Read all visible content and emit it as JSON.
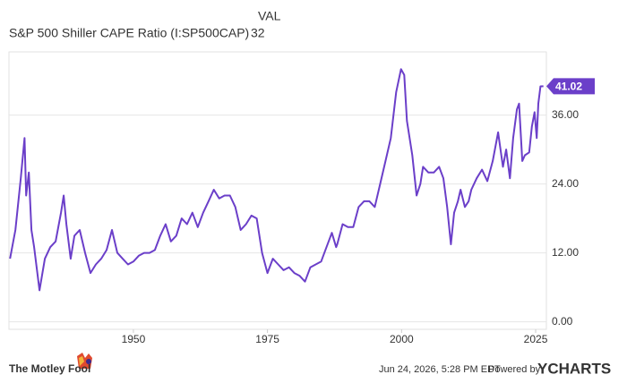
{
  "chart_data": {
    "type": "line",
    "title": "S&P 500 Shiller CAPE Ratio (I:SP500CAP)",
    "value_header": "VAL",
    "x": [
      1927.0,
      1928.0,
      1929.0,
      1929.7,
      1930.0,
      1930.5,
      1931.0,
      1931.5,
      1932.5,
      1933.5,
      1934.5,
      1935.5,
      1936.5,
      1937.0,
      1937.5,
      1938.3,
      1939,
      1940,
      1941,
      1942,
      1943,
      1944,
      1945,
      1946,
      1947,
      1948,
      1949,
      1950,
      1951,
      1952,
      1953,
      1954,
      1955,
      1956,
      1957,
      1958,
      1959,
      1960,
      1961,
      1962,
      1963,
      1964,
      1965,
      1966,
      1967,
      1968,
      1969,
      1970,
      1971,
      1972,
      1973,
      1974,
      1975,
      1976,
      1977,
      1978,
      1979,
      1980,
      1981,
      1982,
      1983,
      1984,
      1985,
      1986,
      1987,
      1987.8,
      1988,
      1989,
      1990,
      1991,
      1992,
      1993,
      1994,
      1995,
      1996,
      1997,
      1998,
      1999,
      1999.9,
      2000.5,
      2001,
      2002,
      2002.8,
      2003.5,
      2004,
      2005,
      2006,
      2007,
      2007.8,
      2008.5,
      2009.2,
      2009.8,
      2010.5,
      2011,
      2011.8,
      2012.5,
      2013,
      2014,
      2015,
      2016,
      2017,
      2018,
      2018.9,
      2019.5,
      2020.2,
      2020.8,
      2021.5,
      2021.9,
      2022.5,
      2023,
      2023.8,
      2024.3,
      2024.8,
      2025.2,
      2025.5,
      2025.9,
      2026.45
    ],
    "series": [
      {
        "name": "S&P 500 Shiller CAPE Ratio (I:SP500CAP)",
        "color": "#6b3fc9",
        "values": [
          11,
          16,
          25,
          32,
          22,
          26,
          16,
          13,
          5.5,
          11,
          13,
          14,
          19,
          22,
          17,
          11,
          15,
          16,
          12,
          8.5,
          10,
          11,
          12.5,
          16,
          12,
          11,
          10,
          10.5,
          11.5,
          12,
          12,
          12.5,
          15,
          17,
          14,
          15,
          18,
          17,
          19,
          16.5,
          19,
          21,
          23,
          21.5,
          22,
          22,
          20,
          16,
          17,
          18.5,
          18,
          12,
          8.5,
          11,
          10,
          9,
          9.5,
          8.5,
          8,
          7,
          9.5,
          10,
          10.5,
          13,
          15.5,
          13,
          13.5,
          17,
          16.5,
          16.5,
          20,
          21,
          21,
          20,
          24,
          28,
          32,
          40,
          44,
          43,
          35,
          29,
          22,
          24,
          27,
          26,
          26,
          27,
          25,
          20,
          13.5,
          19,
          21,
          23,
          20,
          21,
          23,
          25,
          26.5,
          24.5,
          28,
          33,
          27,
          30,
          25,
          32,
          37,
          38,
          28,
          29,
          29.5,
          34,
          36.5,
          32,
          38,
          41,
          41.02
        ]
      }
    ],
    "xlim": [
      1926.8,
      2027
    ],
    "ylim": [
      -1.3,
      47
    ],
    "xticks": [
      1950,
      1975,
      2000,
      2025
    ],
    "yticks": [
      {
        "value": 0,
        "label": "0.00"
      },
      {
        "value": 12,
        "label": "12.00"
      },
      {
        "value": 24,
        "label": "24.00"
      },
      {
        "value": 36,
        "label": "36.00"
      }
    ],
    "grid": true
  },
  "footer": {
    "brand": "The Motley Fool",
    "timestamp": "Jun 24, 2026, 5:28 PM EDT",
    "powered_by": "Powered by",
    "provider": "YCHARTS"
  }
}
